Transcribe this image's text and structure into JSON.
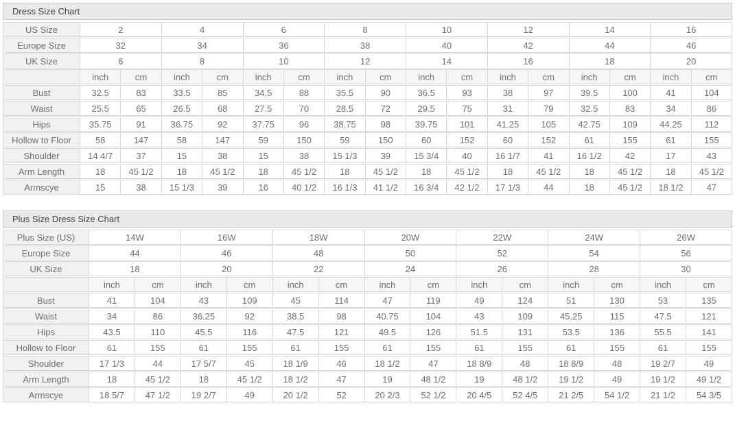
{
  "colors": {
    "title_bar_bg": "#e9e9e9",
    "title_text": "#434343",
    "label_cell_bg": "#f1f1f1",
    "unit_cell_bg": "#f6f6f6",
    "data_cell_bg": "#ffffff",
    "cell_text": "#6e6e6e",
    "border": "#d6d6d6"
  },
  "chart_data": [
    {
      "type": "table",
      "title": "Dress Size Chart",
      "header_rows": [
        {
          "label": "US Size",
          "values": [
            "2",
            "4",
            "6",
            "8",
            "10",
            "12",
            "14",
            "16"
          ]
        },
        {
          "label": "Europe Size",
          "values": [
            "32",
            "34",
            "36",
            "38",
            "40",
            "42",
            "44",
            "46"
          ]
        },
        {
          "label": "UK Size",
          "values": [
            "6",
            "8",
            "10",
            "12",
            "14",
            "16",
            "18",
            "20"
          ]
        }
      ],
      "units": [
        "inch",
        "cm"
      ],
      "rows": [
        {
          "label": "Bust",
          "values": [
            "32.5",
            "83",
            "33.5",
            "85",
            "34.5",
            "88",
            "35.5",
            "90",
            "36.5",
            "93",
            "38",
            "97",
            "39.5",
            "100",
            "41",
            "104"
          ]
        },
        {
          "label": "Waist",
          "values": [
            "25.5",
            "65",
            "26.5",
            "68",
            "27.5",
            "70",
            "28.5",
            "72",
            "29.5",
            "75",
            "31",
            "79",
            "32.5",
            "83",
            "34",
            "86"
          ]
        },
        {
          "label": "Hips",
          "values": [
            "35.75",
            "91",
            "36.75",
            "92",
            "37.75",
            "96",
            "38.75",
            "98",
            "39.75",
            "101",
            "41.25",
            "105",
            "42.75",
            "109",
            "44.25",
            "112"
          ]
        },
        {
          "label": "Hollow to Floor",
          "values": [
            "58",
            "147",
            "58",
            "147",
            "59",
            "150",
            "59",
            "150",
            "60",
            "152",
            "60",
            "152",
            "61",
            "155",
            "61",
            "155"
          ]
        },
        {
          "label": "Shoulder",
          "values": [
            "14 4/7",
            "37",
            "15",
            "38",
            "15",
            "38",
            "15 1/3",
            "39",
            "15 3/4",
            "40",
            "16 1/7",
            "41",
            "16 1/2",
            "42",
            "17",
            "43"
          ]
        },
        {
          "label": "Arm Length",
          "values": [
            "18",
            "45 1/2",
            "18",
            "45 1/2",
            "18",
            "45 1/2",
            "18",
            "45 1/2",
            "18",
            "45 1/2",
            "18",
            "45 1/2",
            "18",
            "45 1/2",
            "18",
            "45 1/2"
          ]
        },
        {
          "label": "Armscye",
          "values": [
            "15",
            "38",
            "15 1/3",
            "39",
            "16",
            "40 1/2",
            "16 1/3",
            "41 1/2",
            "16 3/4",
            "42 1/2",
            "17 1/3",
            "44",
            "18",
            "45 1/2",
            "18 1/2",
            "47"
          ]
        }
      ]
    },
    {
      "type": "table",
      "title": "Plus Size Dress Size Chart",
      "header_rows": [
        {
          "label": "Plus Size (US)",
          "values": [
            "14W",
            "16W",
            "18W",
            "20W",
            "22W",
            "24W",
            "26W"
          ]
        },
        {
          "label": "Europe Size",
          "values": [
            "44",
            "46",
            "48",
            "50",
            "52",
            "54",
            "56"
          ]
        },
        {
          "label": "UK Size",
          "values": [
            "18",
            "20",
            "22",
            "24",
            "26",
            "28",
            "30"
          ]
        }
      ],
      "units": [
        "inch",
        "cm"
      ],
      "rows": [
        {
          "label": "Bust",
          "values": [
            "41",
            "104",
            "43",
            "109",
            "45",
            "114",
            "47",
            "119",
            "49",
            "124",
            "51",
            "130",
            "53",
            "135"
          ]
        },
        {
          "label": "Waist",
          "values": [
            "34",
            "86",
            "36.25",
            "92",
            "38.5",
            "98",
            "40.75",
            "104",
            "43",
            "109",
            "45.25",
            "115",
            "47.5",
            "121"
          ]
        },
        {
          "label": "Hips",
          "values": [
            "43.5",
            "110",
            "45.5",
            "116",
            "47.5",
            "121",
            "49.5",
            "126",
            "51.5",
            "131",
            "53.5",
            "136",
            "55.5",
            "141"
          ]
        },
        {
          "label": "Hollow to Floor",
          "values": [
            "61",
            "155",
            "61",
            "155",
            "61",
            "155",
            "61",
            "155",
            "61",
            "155",
            "61",
            "155",
            "61",
            "155"
          ]
        },
        {
          "label": "Shoulder",
          "values": [
            "17 1/3",
            "44",
            "17 5/7",
            "45",
            "18 1/9",
            "46",
            "18 1/2",
            "47",
            "18 8/9",
            "48",
            "18 8/9",
            "48",
            "19 2/7",
            "49"
          ]
        },
        {
          "label": "Arm Length",
          "values": [
            "18",
            "45 1/2",
            "18",
            "45 1/2",
            "18 1/2",
            "47",
            "19",
            "48 1/2",
            "19",
            "48 1/2",
            "19 1/2",
            "49",
            "19 1/2",
            "49 1/2"
          ]
        },
        {
          "label": "Armscye",
          "values": [
            "18 5/7",
            "47 1/2",
            "19 2/7",
            "49",
            "20 1/2",
            "52",
            "20 2/3",
            "52 1/2",
            "20 4/5",
            "52 4/5",
            "21 2/5",
            "54 1/2",
            "21 1/2",
            "54 3/5"
          ]
        }
      ]
    }
  ]
}
